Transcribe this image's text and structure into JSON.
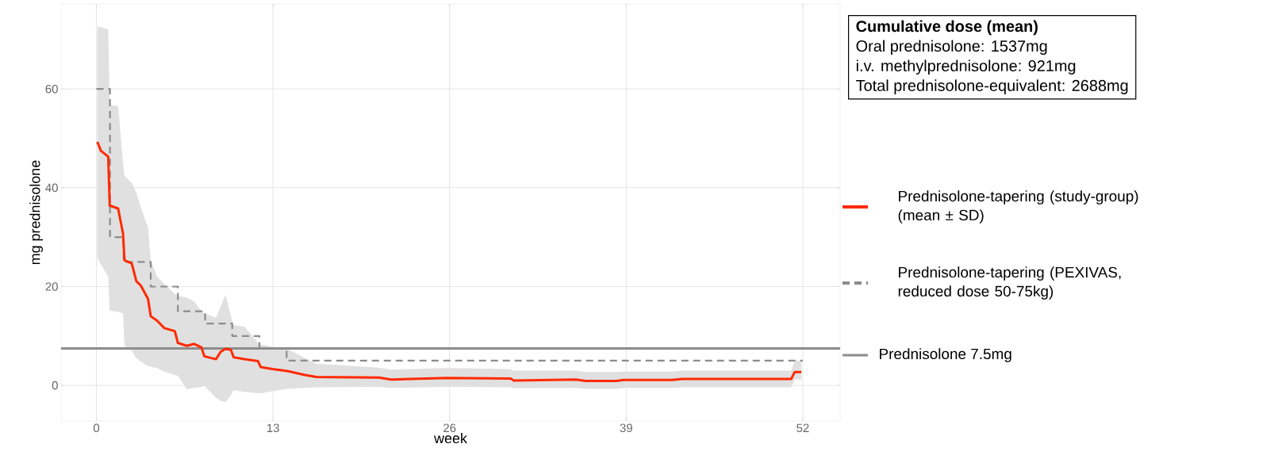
{
  "chart_data": {
    "type": "line",
    "xlabel": "week",
    "ylabel": "mg prednisolone",
    "xlim": [
      -2.6,
      54.75
    ],
    "ylim": [
      -7.2,
      77.2
    ],
    "xticks": [
      0,
      13,
      26,
      39,
      52
    ],
    "yticks": [
      0,
      20,
      40,
      60
    ],
    "grid": true,
    "legend": "right",
    "annotations": [
      "Cumulative dose (mean)",
      "Oral prednisolone: 1537mg",
      "i.v. methylprednisolone: 921mg",
      "Total prednisolone-equivalent: 2688mg"
    ],
    "ref_lines": [
      {
        "axis": "y",
        "value": 7.5,
        "label": "Prednisolone 7.5mg",
        "color": "#8c8c8c"
      }
    ],
    "series": [
      {
        "name": "Prednisolone-tapering (study-group) (mean ± SD)",
        "color": "#ff2a00",
        "line_style": "solid",
        "x": [
          0.07,
          0.33,
          0.87,
          0.98,
          1.6,
          1.96,
          2.07,
          2.6,
          2.94,
          3.27,
          3.8,
          4.0,
          4.47,
          5.0,
          5.77,
          6.0,
          6.65,
          7.2,
          7.73,
          7.95,
          8.8,
          9.15,
          9.5,
          9.9,
          10.1,
          10.9,
          11.9,
          12.1,
          12.96,
          14.05,
          15.36,
          16.2,
          20.8,
          21.7,
          25.8,
          30.5,
          30.7,
          35.3,
          36,
          38.3,
          38.8,
          42.4,
          43.1,
          51.15,
          51.4,
          51.9
        ],
        "values": [
          49.3,
          47.5,
          46.3,
          36.4,
          35.8,
          30.7,
          25.3,
          24.7,
          21.1,
          20.2,
          17.5,
          14.0,
          13.1,
          11.6,
          11.0,
          8.6,
          8.0,
          8.4,
          7.7,
          5.9,
          5.3,
          6.8,
          7.4,
          7.2,
          5.7,
          5.3,
          4.9,
          3.7,
          3.3,
          2.9,
          2.1,
          1.7,
          1.6,
          1.2,
          1.5,
          1.4,
          1.0,
          1.2,
          0.9,
          0.9,
          1.1,
          1.1,
          1.3,
          1.3,
          2.7,
          2.7
        ],
        "lower": [
          25.9,
          24.5,
          22.0,
          15.1,
          14.9,
          14.6,
          8.0,
          7.0,
          5.5,
          4.8,
          3.9,
          3.8,
          3.5,
          2.8,
          2.1,
          2.0,
          -0.8,
          -0.5,
          -0.3,
          -0.1,
          -2.5,
          -3.1,
          -3.4,
          -2.0,
          -1.0,
          -1.3,
          -1.6,
          -1.6,
          -1.2,
          -0.7,
          -0.5,
          -0.4,
          -0.3,
          -0.5,
          -0.3,
          -0.4,
          -0.6,
          -0.5,
          -0.7,
          -0.7,
          -0.5,
          -0.5,
          -0.4,
          -0.4,
          1.2,
          1.2
        ],
        "upper": [
          72.6,
          72.5,
          72.0,
          56.8,
          56.5,
          45,
          42.4,
          41,
          39,
          36,
          32,
          25.3,
          22,
          20.5,
          18.5,
          18.1,
          17.8,
          17.0,
          15.0,
          14.6,
          13.7,
          16.0,
          18.4,
          14.0,
          12.2,
          11.9,
          8.6,
          8.3,
          7.8,
          7.4,
          5.5,
          4.4,
          3.6,
          3.2,
          3.5,
          3.3,
          3.0,
          3.0,
          2.7,
          2.7,
          2.8,
          2.8,
          3.0,
          3.0,
          5.0,
          5.0
        ]
      },
      {
        "name": "Prednisolone-tapering (PEXIVAS, reduced dose 50-75kg)",
        "color": "#8c8c8c",
        "type": "step",
        "line_style": "dashed",
        "x": [
          0,
          1,
          2,
          4,
          6,
          8,
          10,
          12,
          14,
          52
        ],
        "values": [
          60,
          30,
          25,
          20,
          15,
          12.5,
          10,
          7.5,
          5,
          5
        ]
      }
    ]
  }
}
